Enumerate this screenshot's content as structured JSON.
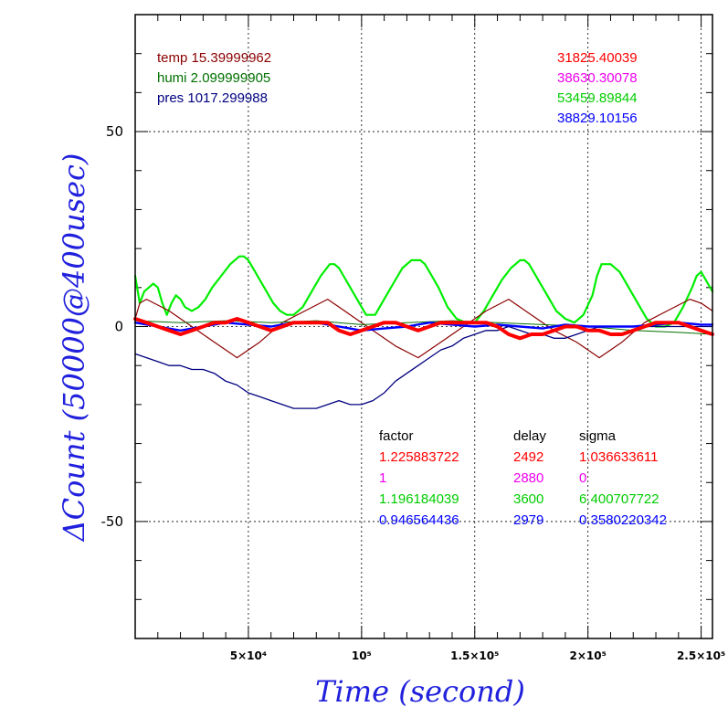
{
  "chart_data": {
    "type": "line",
    "xlabel": "Time (second)",
    "ylabel": "ΔCount (50000@400usec)",
    "xlim": [
      0,
      255000
    ],
    "ylim": [
      -80,
      80
    ],
    "x_ticks": [
      50000,
      100000,
      150000,
      200000,
      250000
    ],
    "x_tick_labels": [
      "5×10⁴",
      "10⁵",
      "1.5×10⁵",
      "2×10⁵",
      "2.5×10⁵"
    ],
    "y_ticks": [
      -50,
      0,
      50
    ],
    "y_tick_labels": [
      "-50",
      "0",
      "50"
    ],
    "grid": true,
    "info_left": [
      {
        "text": "temp 15.39999962",
        "color": "#8b0000"
      },
      {
        "text": "humi 2.099999905",
        "color": "#007000"
      },
      {
        "text": "pres 1017.299988",
        "color": "#000080"
      }
    ],
    "info_right": [
      {
        "text": "31825.40039",
        "color": "#ff0000"
      },
      {
        "text": "38630.30078",
        "color": "#ee00ee"
      },
      {
        "text": "53459.89844",
        "color": "#00cc00"
      },
      {
        "text": "38829.10156",
        "color": "#0000ff"
      }
    ],
    "table": {
      "headers": [
        "factor",
        "delay",
        "sigma"
      ],
      "rows": [
        {
          "color": "#ff0000",
          "cells": [
            "1.225883722",
            "2492",
            "1.036633611"
          ]
        },
        {
          "color": "#ee00ee",
          "cells": [
            "1",
            "2880",
            "0"
          ]
        },
        {
          "color": "#00cc00",
          "cells": [
            "1.196184039",
            "3600",
            "6.400707722"
          ]
        },
        {
          "color": "#0000ff",
          "cells": [
            "0.946564436",
            "2979",
            "0.3580220342"
          ]
        }
      ]
    },
    "series": [
      {
        "color": "#00ee00",
        "width": 2.2,
        "x": [
          0,
          2000,
          4000,
          6000,
          8000,
          10000,
          12000,
          14000,
          16000,
          18000,
          20000,
          22000,
          25000,
          28000,
          31000,
          34000,
          38000,
          42000,
          46000,
          48000,
          50000,
          53000,
          57000,
          61000,
          64000,
          67000,
          70000,
          74000,
          78000,
          82000,
          86000,
          88000,
          90000,
          94000,
          98000,
          102000,
          106000,
          110000,
          114000,
          118000,
          122000,
          126000,
          128000,
          130000,
          134000,
          138000,
          142000,
          146000,
          150000,
          154000,
          158000,
          162000,
          166000,
          170000,
          172000,
          174000,
          178000,
          182000,
          186000,
          190000,
          194000,
          198000,
          202000,
          204000,
          206000,
          210000,
          214000,
          218000,
          222000,
          226000,
          230000,
          234000,
          238000,
          242000,
          246000,
          248000,
          250000,
          253000,
          255000
        ],
        "y": [
          13,
          6,
          9,
          10,
          11,
          10,
          6,
          3,
          6,
          8,
          7,
          5,
          4,
          5,
          7,
          10,
          13,
          16,
          18,
          18,
          17,
          14,
          10,
          6,
          4,
          3,
          3,
          5,
          9,
          13,
          16,
          16,
          15,
          11,
          7,
          3,
          3,
          7,
          11,
          15,
          17,
          17,
          16,
          14,
          10,
          5,
          2,
          1,
          1,
          4,
          8,
          12,
          15,
          17,
          17,
          16,
          12,
          8,
          4,
          2,
          1,
          3,
          8,
          13,
          16,
          16,
          14,
          10,
          6,
          2,
          0,
          0,
          1,
          5,
          10,
          13,
          14,
          11,
          9
        ]
      },
      {
        "color": "#8b0000",
        "width": 1.2,
        "x": [
          0,
          2000,
          5000,
          15000,
          25000,
          35000,
          45000,
          55000,
          65000,
          75000,
          85000,
          95000,
          105000,
          115000,
          125000,
          135000,
          145000,
          155000,
          165000,
          175000,
          185000,
          195000,
          205000,
          215000,
          225000,
          235000,
          245000,
          250000,
          255000
        ],
        "y": [
          2,
          6,
          7,
          4,
          0,
          -4,
          -8,
          -4,
          1,
          4,
          7,
          3,
          -1,
          -5,
          -8,
          -4,
          0,
          4,
          7,
          3,
          -1,
          -4,
          -8,
          -4,
          1,
          4,
          7,
          6,
          4
        ]
      },
      {
        "color": "#007000",
        "width": 1.0,
        "x": [
          0,
          20000,
          40000,
          60000,
          80000,
          100000,
          120000,
          140000,
          160000,
          180000,
          200000,
          220000,
          240000,
          255000
        ],
        "y": [
          1.5,
          1,
          1.5,
          1,
          1.5,
          0.5,
          1,
          1.5,
          1,
          0.5,
          0,
          -1,
          -1.5,
          -2
        ]
      },
      {
        "color": "#000080",
        "width": 1.3,
        "x": [
          0,
          5000,
          10000,
          15000,
          20000,
          25000,
          30000,
          35000,
          40000,
          45000,
          50000,
          55000,
          60000,
          65000,
          70000,
          75000,
          80000,
          85000,
          90000,
          95000,
          100000,
          105000,
          110000,
          115000,
          120000,
          125000,
          130000,
          135000,
          140000,
          145000,
          150000,
          155000,
          160000,
          165000,
          170000,
          175000,
          180000,
          185000,
          190000,
          195000,
          200000,
          205000,
          210000,
          215000,
          220000,
          225000,
          230000,
          235000,
          240000,
          245000,
          250000,
          255000
        ],
        "y": [
          -7,
          -8,
          -9,
          -10,
          -10,
          -11,
          -11,
          -12,
          -14,
          -15,
          -17,
          -18,
          -19,
          -20,
          -21,
          -21,
          -21,
          -20,
          -19,
          -20,
          -20,
          -19,
          -17,
          -14,
          -12,
          -10,
          -8,
          -6,
          -5,
          -3,
          -2,
          -1,
          -1,
          0,
          -1,
          -2,
          -2,
          -3,
          -3,
          -2,
          -1,
          0,
          0,
          0,
          0,
          0,
          0,
          0,
          0,
          0,
          0,
          0
        ]
      },
      {
        "color": "#0000ff",
        "width": 2.4,
        "x": [
          0,
          10000,
          20000,
          30000,
          40000,
          50000,
          60000,
          70000,
          80000,
          90000,
          100000,
          110000,
          120000,
          130000,
          140000,
          150000,
          160000,
          170000,
          180000,
          190000,
          200000,
          210000,
          220000,
          230000,
          240000,
          250000,
          255000
        ],
        "y": [
          1,
          0,
          -1,
          0,
          1,
          0.5,
          0,
          1,
          1,
          0,
          -1,
          -0.5,
          0,
          1,
          0.5,
          0,
          0.5,
          0,
          -0.5,
          0.5,
          0,
          0,
          0,
          0.5,
          1,
          0.5,
          0.5
        ]
      },
      {
        "color": "#ff0000",
        "width": 4.0,
        "x": [
          0,
          5000,
          10000,
          15000,
          20000,
          25000,
          30000,
          35000,
          40000,
          45000,
          50000,
          55000,
          60000,
          65000,
          70000,
          75000,
          80000,
          85000,
          90000,
          95000,
          100000,
          105000,
          110000,
          115000,
          120000,
          125000,
          130000,
          135000,
          140000,
          145000,
          150000,
          155000,
          160000,
          165000,
          170000,
          175000,
          180000,
          185000,
          190000,
          195000,
          200000,
          205000,
          210000,
          215000,
          220000,
          225000,
          230000,
          235000,
          240000,
          245000,
          250000,
          255000
        ],
        "y": [
          2,
          1,
          0,
          -1,
          -2,
          -1,
          0,
          1,
          1,
          2,
          1,
          0,
          -1,
          0,
          1,
          1,
          1,
          1,
          -1,
          -2,
          -1,
          0,
          1,
          1,
          0,
          -1,
          0,
          1,
          1,
          1,
          1,
          1,
          0,
          -2,
          -3,
          -2,
          -2,
          -1,
          0,
          0,
          -1,
          -1,
          -2,
          -2,
          -1,
          0,
          1,
          1,
          1,
          0,
          -1,
          -2
        ]
      }
    ]
  }
}
